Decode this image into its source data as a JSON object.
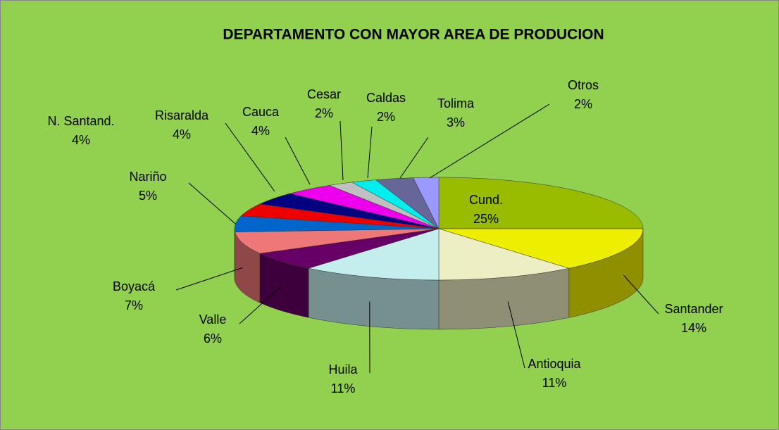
{
  "chart_data": {
    "type": "pie",
    "title": "DEPARTAMENTO  CON  MAYOR  AREA  DE  PRODUCION",
    "categories": [
      "Cund.",
      "Santander",
      "Antioquia",
      "Huila",
      "Valle",
      "Boyacá",
      "Nariño",
      "N. Santand.",
      "Risaralda",
      "Cauca",
      "Cesar",
      "Caldas",
      "Tolima",
      "Otros"
    ],
    "values": [
      25,
      14,
      11,
      11,
      6,
      7,
      5,
      4,
      4,
      4,
      2,
      2,
      3,
      2
    ],
    "value_labels": [
      "25%",
      "14%",
      "11%",
      "11%",
      "6%",
      "7%",
      "5%",
      "4%",
      "4%",
      "4%",
      "2%",
      "2%",
      "3%",
      "2%"
    ],
    "colors": [
      "#99bb00",
      "#eeee00",
      "#eeeec4",
      "#c4eeee",
      "#660066",
      "#ee7777",
      "#0066cc",
      "#ee0000",
      "#000080",
      "#ee00ee",
      "#c0c0c0",
      "#00eeee",
      "#666699",
      "#9999ff"
    ]
  }
}
